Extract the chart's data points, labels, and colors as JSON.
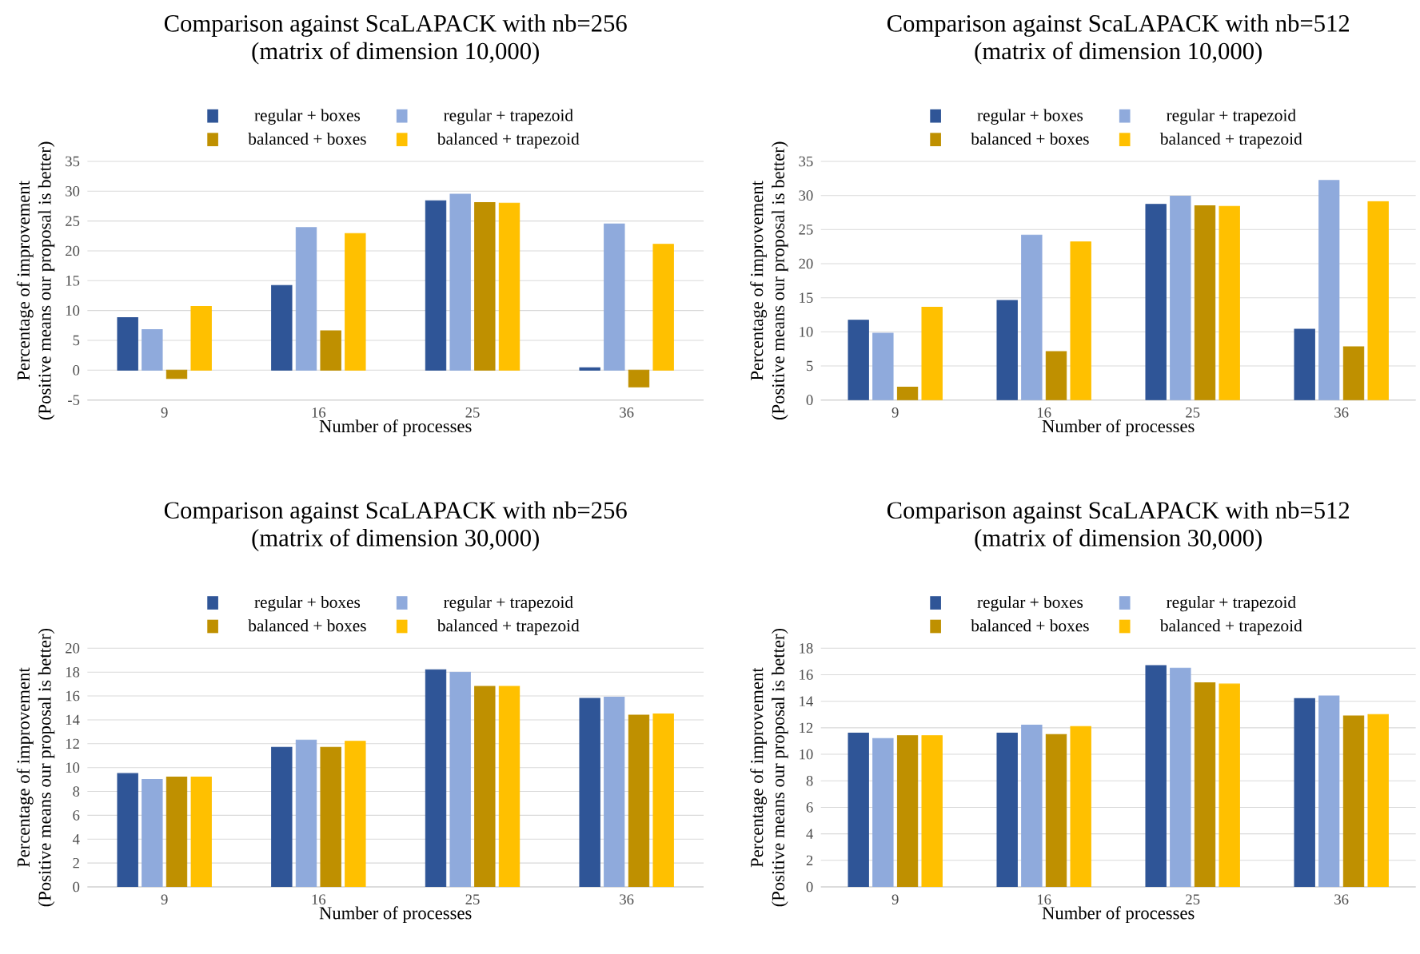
{
  "chart_data": [
    {
      "type": "bar",
      "title": "Comparison against ScaLAPACK with nb=256 (matrix of dimension 10,000)",
      "xlabel": "Number of processes",
      "ylabel": "Percentage of improvement (Positive means our proposal is better)",
      "categories": [
        "9",
        "16",
        "25",
        "36"
      ],
      "series": [
        {
          "name": "regular + boxes",
          "color": "#2f5597",
          "values": [
            8.8,
            14.2,
            28.4,
            0.4
          ]
        },
        {
          "name": "regular + trapezoid",
          "color": "#8faadc",
          "values": [
            6.8,
            23.9,
            29.5,
            24.5
          ]
        },
        {
          "name": "balanced + boxes",
          "color": "#bf9000",
          "values": [
            -1.4,
            6.6,
            28.1,
            -2.8
          ]
        },
        {
          "name": "balanced + trapezoid",
          "color": "#ffc000",
          "values": [
            10.7,
            22.9,
            28.0,
            21.1
          ]
        }
      ],
      "ylim": [
        -5,
        35
      ],
      "yticks": [
        -5,
        0,
        5,
        10,
        15,
        20,
        25,
        30,
        35
      ],
      "grid": "y",
      "legend": "top"
    },
    {
      "type": "bar",
      "title": "Comparison against ScaLAPACK with nb=512 (matrix of dimension 10,000)",
      "xlabel": "Number of processes",
      "ylabel": "Percentage of improvement (Positive means our proposal is better)",
      "categories": [
        "9",
        "16",
        "25",
        "36"
      ],
      "series": [
        {
          "name": "regular + boxes",
          "color": "#2f5597",
          "values": [
            11.7,
            14.6,
            28.7,
            10.4
          ]
        },
        {
          "name": "regular + trapezoid",
          "color": "#8faadc",
          "values": [
            9.8,
            24.2,
            29.9,
            32.2
          ]
        },
        {
          "name": "balanced + boxes",
          "color": "#bf9000",
          "values": [
            1.9,
            7.1,
            28.5,
            7.8
          ]
        },
        {
          "name": "balanced + trapezoid",
          "color": "#ffc000",
          "values": [
            13.6,
            23.2,
            28.4,
            29.1
          ]
        }
      ],
      "ylim": [
        0,
        35
      ],
      "yticks": [
        0,
        5,
        10,
        15,
        20,
        25,
        30,
        35
      ],
      "grid": "y",
      "legend": "top"
    },
    {
      "type": "bar",
      "title": "Comparison against ScaLAPACK with nb=256 (matrix of dimension 30,000)",
      "xlabel": "Number of processes",
      "ylabel": "Percentage of improvement (Positive means our proposal is better)",
      "categories": [
        "9",
        "16",
        "25",
        "36"
      ],
      "series": [
        {
          "name": "regular + boxes",
          "color": "#2f5597",
          "values": [
            9.5,
            11.7,
            18.2,
            15.8
          ]
        },
        {
          "name": "regular + trapezoid",
          "color": "#8faadc",
          "values": [
            9.0,
            12.3,
            18.0,
            15.9
          ]
        },
        {
          "name": "balanced + boxes",
          "color": "#bf9000",
          "values": [
            9.2,
            11.7,
            16.8,
            14.4
          ]
        },
        {
          "name": "balanced + trapezoid",
          "color": "#ffc000",
          "values": [
            9.2,
            12.2,
            16.8,
            14.5
          ]
        }
      ],
      "ylim": [
        0,
        20
      ],
      "yticks": [
        0,
        2,
        4,
        6,
        8,
        10,
        12,
        14,
        16,
        18,
        20
      ],
      "grid": "y",
      "legend": "top"
    },
    {
      "type": "bar",
      "title": "Comparison against ScaLAPACK with nb=512 (matrix of dimension 30,000)",
      "xlabel": "Number of processes",
      "ylabel": "Percentage of improvement (Positive means our proposal is better)",
      "categories": [
        "9",
        "16",
        "25",
        "36"
      ],
      "series": [
        {
          "name": "regular + boxes",
          "color": "#2f5597",
          "values": [
            11.6,
            11.6,
            16.7,
            14.2
          ]
        },
        {
          "name": "regular + trapezoid",
          "color": "#8faadc",
          "values": [
            11.2,
            12.2,
            16.5,
            14.4
          ]
        },
        {
          "name": "balanced + boxes",
          "color": "#bf9000",
          "values": [
            11.4,
            11.5,
            15.4,
            12.9
          ]
        },
        {
          "name": "balanced + trapezoid",
          "color": "#ffc000",
          "values": [
            11.4,
            12.1,
            15.3,
            13.0
          ]
        }
      ],
      "ylim": [
        0,
        18
      ],
      "yticks": [
        0,
        2,
        4,
        6,
        8,
        10,
        12,
        14,
        16,
        18
      ],
      "grid": "y",
      "legend": "top"
    }
  ]
}
